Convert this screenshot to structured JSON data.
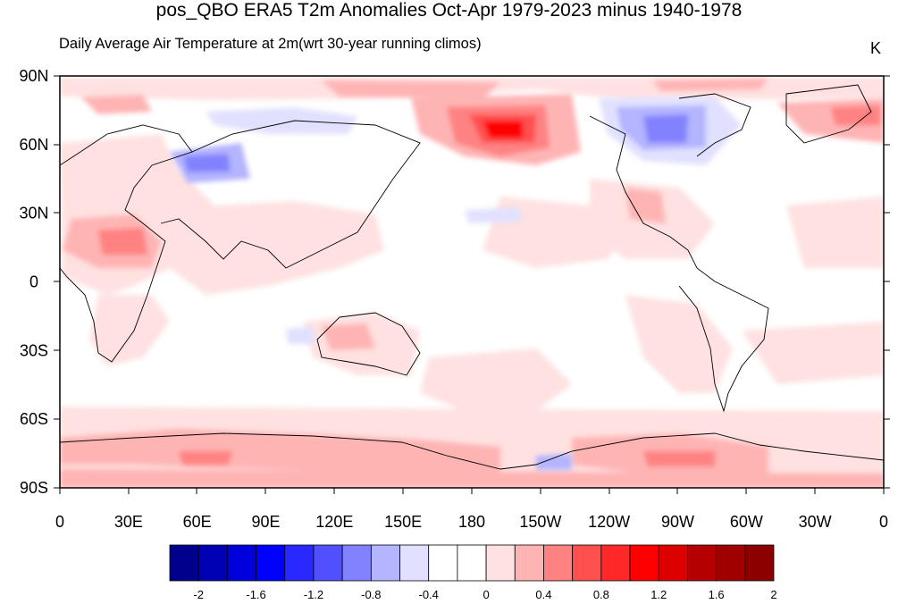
{
  "title": "pos_QBO ERA5 T2m Anomalies Oct-Apr 1979-2023 minus 1940-1978",
  "subtitle": "Daily Average Air Temperature at 2m(wrt 30-year running climos)",
  "units": "K",
  "lat_labels": [
    "90N",
    "60N",
    "30N",
    "0",
    "30S",
    "60S",
    "90S"
  ],
  "lon_labels": [
    "0",
    "30E",
    "60E",
    "90E",
    "120E",
    "150E",
    "180",
    "150W",
    "120W",
    "90W",
    "60W",
    "30W",
    "0"
  ],
  "colorbar": {
    "colors": [
      "#00008c",
      "#0000b4",
      "#0000dc",
      "#0000ff",
      "#2828ff",
      "#5050ff",
      "#8282ff",
      "#b4b4ff",
      "#e1e1ff",
      "#ffffff",
      "#ffffff",
      "#ffe1e1",
      "#ffb4b4",
      "#ff8282",
      "#ff5050",
      "#ff2828",
      "#ff0000",
      "#dc0000",
      "#b40000",
      "#a00000",
      "#8c0000"
    ],
    "tick_labels": [
      "-2",
      "-1.6",
      "-1.2",
      "-0.8",
      "-0.4",
      "0",
      "0.4",
      "0.8",
      "1.2",
      "1.6",
      "2"
    ]
  }
}
